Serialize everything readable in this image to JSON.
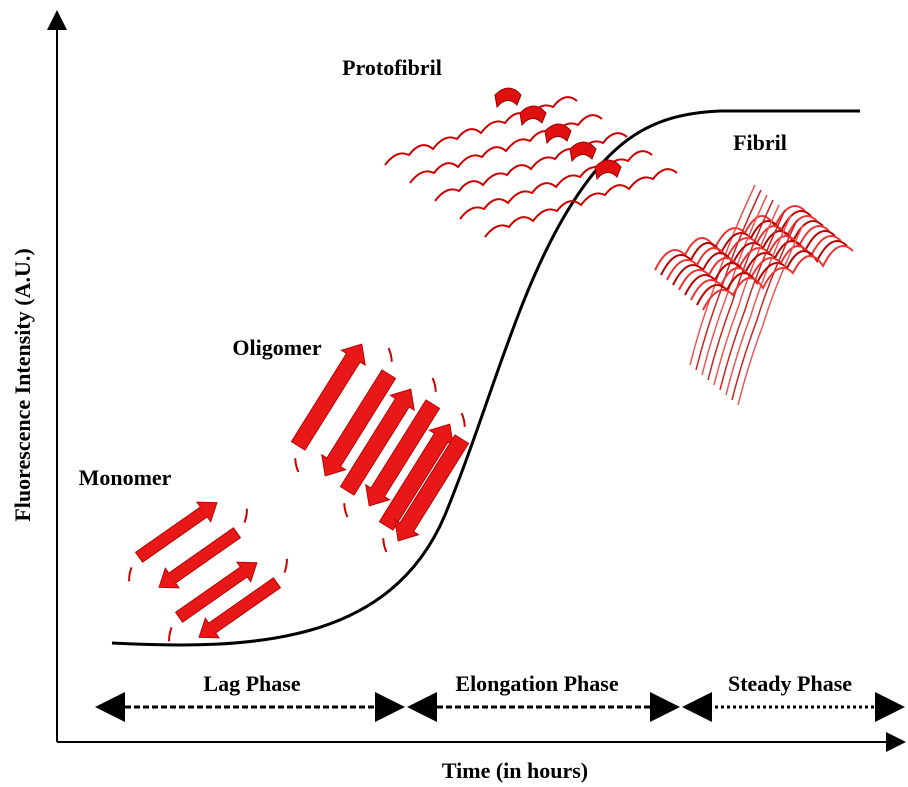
{
  "axes": {
    "y_label": "Fluorescence Intensity (A.U.)",
    "x_label": "Time (in hours)"
  },
  "stages": [
    {
      "label": "Monomer"
    },
    {
      "label": "Oligomer"
    },
    {
      "label": "Protofibril"
    },
    {
      "label": "Fibril"
    }
  ],
  "phases": [
    {
      "label": "Lag Phase"
    },
    {
      "label": "Elongation Phase"
    },
    {
      "label": "Steady Phase"
    }
  ]
}
